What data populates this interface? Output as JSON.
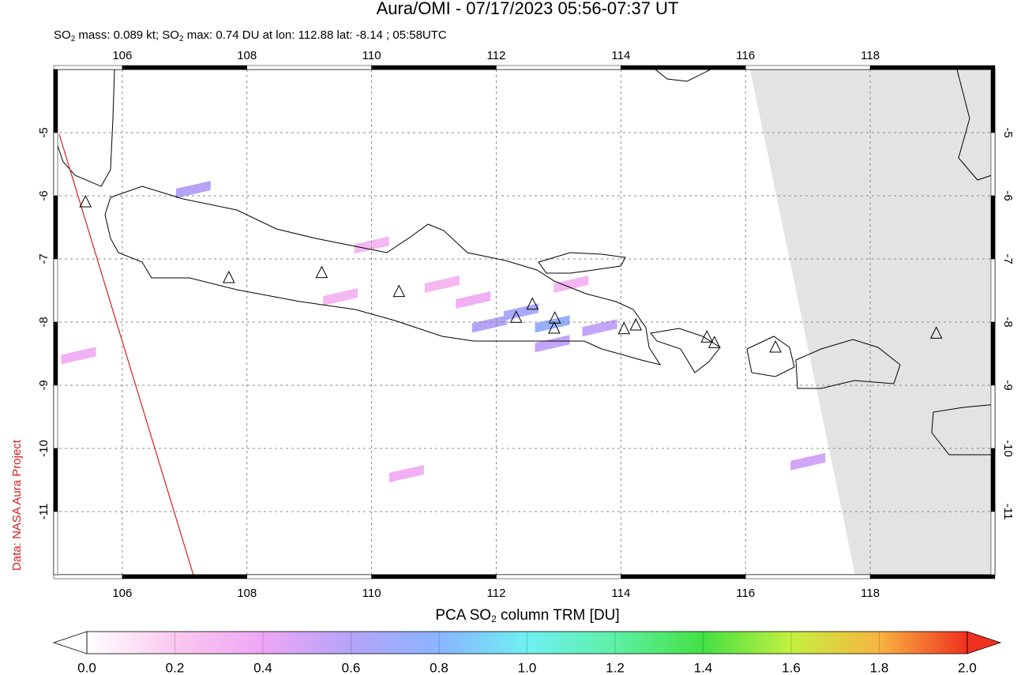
{
  "chart_data": {
    "type": "map",
    "title": "Aura/OMI - 07/17/2023 05:56-07:37 UT",
    "subtitle_parts": [
      "SO",
      "2",
      " mass: 0.089 kt; SO",
      "2",
      " max: 0.74 DU at lon: 112.88 lat: -8.14 ; 05:58UTC"
    ],
    "side_label": "Data: NASA Aura Project",
    "xlim": [
      104.9,
      120
    ],
    "xticks": [
      106,
      108,
      110,
      112,
      114,
      116,
      118
    ],
    "ylim": [
      -12,
      -4
    ],
    "yticks": [
      -5,
      -6,
      -7,
      -8,
      -9,
      -10,
      -11
    ],
    "grid": true,
    "volcanoes": {
      "lon": [
        105.41,
        107.71,
        109.2,
        110.44,
        112.32,
        112.58,
        112.94,
        112.93,
        114.05,
        114.24,
        115.38,
        115.5,
        116.48,
        119.06
      ],
      "lat": [
        -6.1,
        -7.3,
        -7.22,
        -7.52,
        -7.93,
        -7.72,
        -7.94,
        -8.1,
        -8.11,
        -8.05,
        -8.24,
        -8.33,
        -8.4,
        -8.18
      ]
    },
    "pixels": {
      "lon": [
        111.89,
        112.4,
        112.9,
        112.9,
        113.66,
        107.14,
        111.63,
        111.13,
        105.3,
        110.56,
        117.0,
        110.0,
        113.2,
        109.5
      ],
      "lat": [
        -8.03,
        -7.84,
        -8.03,
        -8.34,
        -8.09,
        -5.9,
        -7.65,
        -7.4,
        -8.53,
        -10.4,
        -10.21,
        -6.78,
        -7.4,
        -7.6
      ],
      "values": [
        0.6,
        0.65,
        0.74,
        0.55,
        0.55,
        0.6,
        0.35,
        0.3,
        0.35,
        0.35,
        0.5,
        0.3,
        0.3,
        0.3
      ]
    },
    "colorbar": {
      "label_parts": [
        "PCA SO",
        "2",
        " column TRM [DU]"
      ],
      "clim": [
        0,
        2
      ],
      "ticks": [
        {
          "value": 0,
          "label": "0.0"
        },
        0.2,
        0.4,
        0.6,
        0.8,
        {
          "value": 1,
          "label": "1.0"
        },
        1.2,
        1.4,
        1.6,
        1.8,
        {
          "value": 2,
          "label": "2.0"
        }
      ],
      "colors": [
        "#ffffff",
        "#fac8ee",
        "#eea6f6",
        "#b4a4f8",
        "#8ab4ff",
        "#6ef0f2",
        "#5ef0a6",
        "#44e044",
        "#c4f040",
        "#f8b440",
        "#f03020"
      ]
    }
  }
}
